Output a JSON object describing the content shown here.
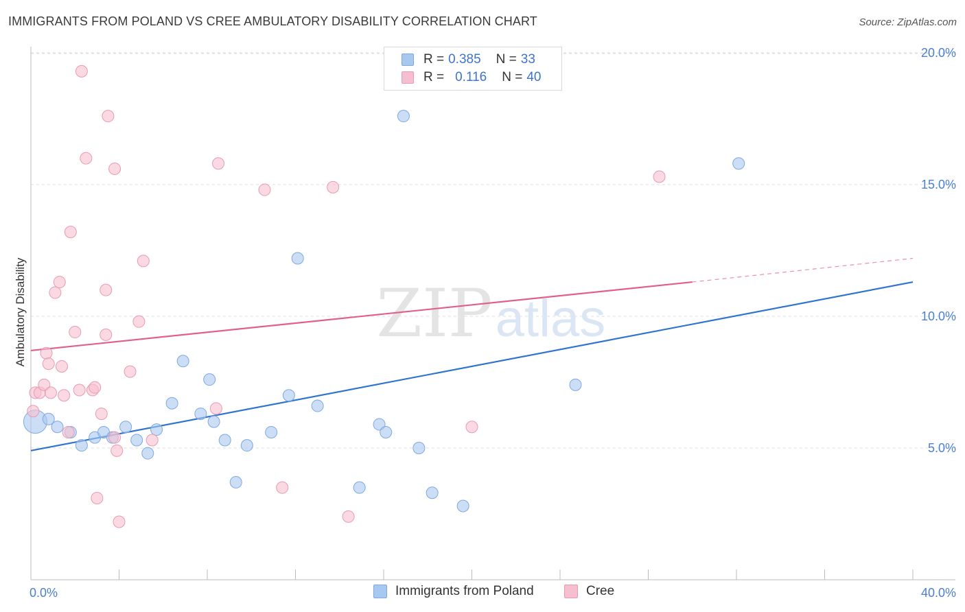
{
  "header": {
    "title": "IMMIGRANTS FROM POLAND VS CREE AMBULATORY DISABILITY CORRELATION CHART",
    "source": "Source: ZipAtlas.com"
  },
  "watermark": {
    "zip": "ZIP",
    "atlas": "atlas"
  },
  "legend": {
    "rows": [
      {
        "r_label": "R =",
        "r_value": "0.385",
        "n_label": "N =",
        "n_value": "33",
        "color": "#a9c8f0",
        "border": "#7ea8e0"
      },
      {
        "r_label": "R =",
        "r_value": "0.116",
        "n_label": "N =",
        "n_value": "40",
        "color": "#f6bfd0",
        "border": "#e89ab2"
      }
    ]
  },
  "colors": {
    "blue_fill": "#a9c8f0",
    "blue_line": "#2f74d0",
    "pink_fill": "#f6bfd0",
    "pink_line": "#e0608a",
    "tick_text": "#4a7fd0",
    "grid": "#dedede"
  },
  "chart_data": {
    "type": "scatter",
    "title": "IMMIGRANTS FROM POLAND VS CREE AMBULATORY DISABILITY CORRELATION CHART",
    "xlabel": "",
    "ylabel": "Ambulatory Disability",
    "xlim": [
      0,
      40
    ],
    "ylim": [
      0,
      20.5
    ],
    "x_tick_labels": [
      "0.0%",
      "40.0%"
    ],
    "y_ticks": [
      5,
      10,
      15,
      20
    ],
    "y_tick_labels": [
      "5.0%",
      "10.0%",
      "15.0%",
      "20.0%"
    ],
    "grid": true,
    "legend_position": "top-center",
    "series": [
      {
        "name": "Immigrants from Poland",
        "color": "#a9c8f0",
        "points": [
          [
            0.2,
            6.0,
            "big"
          ],
          [
            0.8,
            6.1
          ],
          [
            1.2,
            5.8
          ],
          [
            1.8,
            5.6
          ],
          [
            2.3,
            5.1
          ],
          [
            2.9,
            5.4
          ],
          [
            3.3,
            5.6
          ],
          [
            3.7,
            5.4
          ],
          [
            4.3,
            5.8
          ],
          [
            4.8,
            5.3
          ],
          [
            5.3,
            4.8
          ],
          [
            5.7,
            5.7
          ],
          [
            6.4,
            6.7
          ],
          [
            6.9,
            8.3
          ],
          [
            7.7,
            6.3
          ],
          [
            8.1,
            7.6
          ],
          [
            8.3,
            6.0
          ],
          [
            8.8,
            5.3
          ],
          [
            9.3,
            3.7
          ],
          [
            9.8,
            5.1
          ],
          [
            10.9,
            5.6
          ],
          [
            11.7,
            7.0
          ],
          [
            12.1,
            12.2
          ],
          [
            13.0,
            6.6
          ],
          [
            14.9,
            3.5
          ],
          [
            15.8,
            5.9
          ],
          [
            16.1,
            5.6
          ],
          [
            16.9,
            17.6
          ],
          [
            17.6,
            5.0
          ],
          [
            18.2,
            3.3
          ],
          [
            19.6,
            2.8
          ],
          [
            24.7,
            7.4
          ],
          [
            32.1,
            15.8
          ]
        ],
        "trend": {
          "x": [
            0,
            40
          ],
          "y": [
            4.9,
            11.3
          ]
        }
      },
      {
        "name": "Cree",
        "color": "#f6bfd0",
        "points": [
          [
            0.1,
            6.4
          ],
          [
            0.2,
            7.1
          ],
          [
            0.4,
            7.1
          ],
          [
            0.6,
            7.4
          ],
          [
            0.7,
            8.6
          ],
          [
            0.8,
            8.2
          ],
          [
            0.9,
            7.1
          ],
          [
            1.1,
            10.9
          ],
          [
            1.3,
            11.3
          ],
          [
            1.4,
            8.1
          ],
          [
            1.5,
            7.0
          ],
          [
            1.7,
            5.6
          ],
          [
            1.8,
            13.2
          ],
          [
            2.0,
            9.4
          ],
          [
            2.2,
            7.2
          ],
          [
            2.3,
            19.3
          ],
          [
            2.5,
            16.0
          ],
          [
            2.8,
            7.2
          ],
          [
            2.9,
            7.3
          ],
          [
            3.0,
            3.1
          ],
          [
            3.2,
            6.3
          ],
          [
            3.4,
            11.0
          ],
          [
            3.4,
            9.3
          ],
          [
            3.5,
            17.6
          ],
          [
            3.8,
            5.4
          ],
          [
            3.8,
            15.6
          ],
          [
            3.9,
            4.9
          ],
          [
            4.0,
            2.2
          ],
          [
            4.5,
            7.9
          ],
          [
            4.9,
            9.8
          ],
          [
            5.1,
            12.1
          ],
          [
            5.5,
            5.3
          ],
          [
            8.4,
            6.5
          ],
          [
            8.5,
            15.8
          ],
          [
            10.6,
            14.8
          ],
          [
            11.4,
            3.5
          ],
          [
            13.7,
            14.9
          ],
          [
            14.4,
            2.4
          ],
          [
            20.0,
            5.8
          ],
          [
            28.5,
            15.3
          ]
        ],
        "trend": {
          "x": [
            0,
            30
          ],
          "y": [
            8.7,
            11.3
          ]
        },
        "trend_dashed": {
          "x": [
            30,
            40
          ],
          "y": [
            11.3,
            12.2
          ]
        }
      }
    ]
  }
}
